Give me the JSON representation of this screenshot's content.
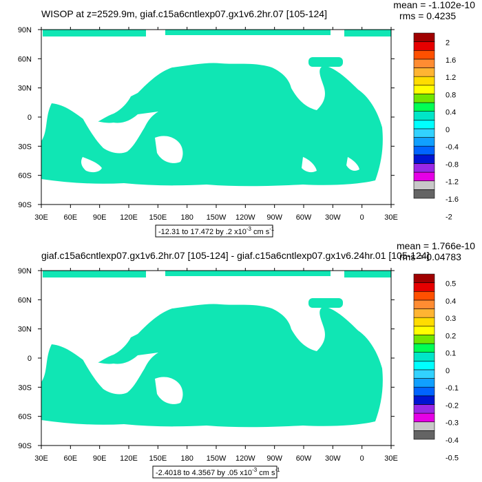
{
  "palette": [
    "#646464",
    "#c8c8c8",
    "#e600e6",
    "#9a28e6",
    "#0014d2",
    "#0064ff",
    "#10a0ff",
    "#32d2ff",
    "#00ffff",
    "#00e6c8",
    "#00ff55",
    "#70e600",
    "#ffff00",
    "#ffdc00",
    "#ffb432",
    "#ff8c32",
    "#ff5000",
    "#e60000",
    "#a00000"
  ],
  "land_color": "#ffffff",
  "ocean_color": "#10e6b4",
  "lon_ticks": [
    "30E",
    "60E",
    "90E",
    "120E",
    "150E",
    "180",
    "150W",
    "120W",
    "90W",
    "60W",
    "30W",
    "0",
    "30E"
  ],
  "lat_ticks": [
    "90N",
    "60N",
    "30N",
    "0",
    "30S",
    "60S",
    "90S"
  ],
  "panels": [
    {
      "id": "top",
      "title": "WISOP at z=2529.9m, giaf.c15a6cntlexp07.gx1v6.2hr.07 [105-124]",
      "mean": "mean = -1.102e-10",
      "rms": "rms = 0.4235",
      "colorbar_labels": [
        "2",
        "1.6",
        "1.2",
        "0.8",
        "0.4",
        "0",
        "-0.4",
        "-0.8",
        "-1.2",
        "-1.6",
        "-2"
      ],
      "range_note": "-12.31 to 17.472 by .2 x10",
      "range_exp": "-3",
      "range_unit": " cm s",
      "range_unit_exp": "-1"
    },
    {
      "id": "bottom",
      "title": "giaf.c15a6cntlexp07.gx1v6.2hr.07 [105-124] - giaf.c15a6cntlexp07.gx1v6.24hr.01 [105-124]",
      "mean": "mean = 1.766e-10",
      "rms": "rms = 0.04783",
      "colorbar_labels": [
        "0.5",
        "0.4",
        "0.3",
        "0.2",
        "0.1",
        "0",
        "-0.1",
        "-0.2",
        "-0.3",
        "-0.4",
        "-0.5"
      ],
      "range_note": "-2.4018 to 4.3567 by .05 x10",
      "range_exp": "-3",
      "range_unit": " cm s",
      "range_unit_exp": "-1"
    }
  ],
  "chart_data": [
    {
      "type": "heatmap",
      "title": "WISOP at z=2529.9m, giaf.c15a6cntlexp07.gx1v6.2hr.07 [105-124]",
      "x_ticks": [
        "30E",
        "60E",
        "90E",
        "120E",
        "150E",
        "180",
        "150W",
        "120W",
        "90W",
        "60W",
        "30W",
        "0",
        "30E"
      ],
      "y_ticks": [
        "90N",
        "60N",
        "30N",
        "0",
        "30S",
        "60S",
        "90S"
      ],
      "xlim": [
        30,
        390
      ],
      "ylim": [
        -90,
        90
      ],
      "colorbar": {
        "min": -2,
        "max": 2,
        "step": 0.4,
        "labels": [
          "-2",
          "-1.6",
          "-1.2",
          "-0.8",
          "-0.4",
          "0",
          "0.4",
          "0.8",
          "1.2",
          "1.6",
          "2"
        ]
      },
      "mean": -1.102e-10,
      "rms": 0.4235,
      "range": {
        "min": -12.31,
        "max": 17.472,
        "interval": 0.2,
        "scale": "x10^-3 cm s^-1"
      }
    },
    {
      "type": "heatmap",
      "title": "giaf.c15a6cntlexp07.gx1v6.2hr.07 [105-124] - giaf.c15a6cntlexp07.gx1v6.24hr.01 [105-124]",
      "x_ticks": [
        "30E",
        "60E",
        "90E",
        "120E",
        "150E",
        "180",
        "150W",
        "120W",
        "90W",
        "60W",
        "30W",
        "0",
        "30E"
      ],
      "y_ticks": [
        "90N",
        "60N",
        "30N",
        "0",
        "30S",
        "60S",
        "90S"
      ],
      "xlim": [
        30,
        390
      ],
      "ylim": [
        -90,
        90
      ],
      "colorbar": {
        "min": -0.5,
        "max": 0.5,
        "step": 0.1,
        "labels": [
          "-0.5",
          "-0.4",
          "-0.3",
          "-0.2",
          "-0.1",
          "0",
          "0.1",
          "0.2",
          "0.3",
          "0.4",
          "0.5"
        ]
      },
      "mean": 1.766e-10,
      "rms": 0.04783,
      "range": {
        "min": -2.4018,
        "max": 4.3567,
        "interval": 0.05,
        "scale": "x10^-3 cm s^-1"
      }
    }
  ]
}
